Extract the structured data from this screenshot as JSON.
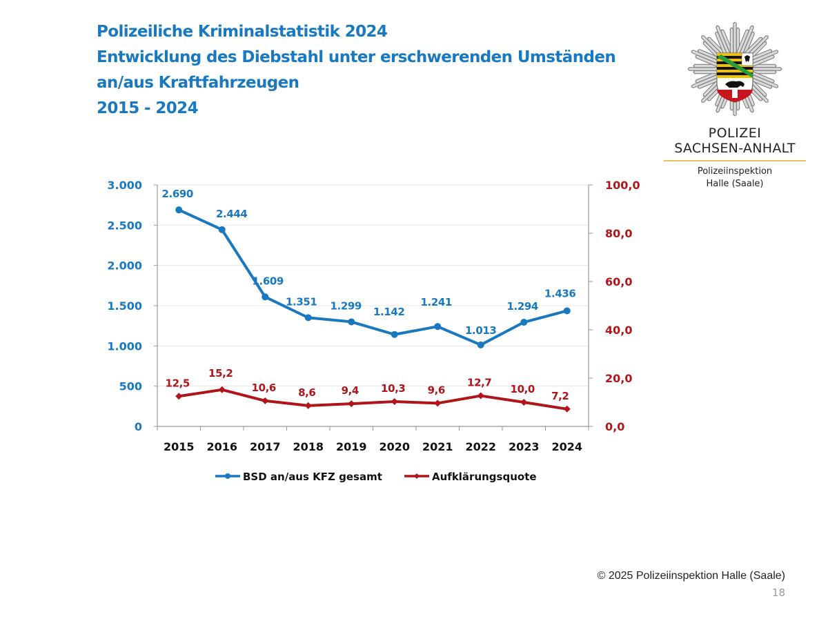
{
  "title": {
    "line1": "Polizeiliche Kriminalstatistik 2024",
    "line2": "Entwicklung des Diebstahl unter erschwerenden Umständen",
    "line3": "an/aus Kraftfahrzeugen",
    "line4": "2015 - 2024"
  },
  "logo": {
    "icon": "police-star-emblem-icon",
    "org_line1": "POLIZEI",
    "org_line2": "SACHSEN-ANHALT",
    "sub_line1": "Polizeiinspektion",
    "sub_line2": "Halle (Saale)"
  },
  "footer": {
    "copyright": "© 2025 Polizeiinspektion Halle (Saale)",
    "page_number": "18"
  },
  "colors": {
    "blue": "#1878c0",
    "red": "#b0151c",
    "title": "#1878c0"
  },
  "chart_data": {
    "type": "line",
    "title": "Entwicklung des Diebstahl unter erschwerenden Umständen an/aus Kraftfahrzeugen 2015 - 2024",
    "xlabel": "",
    "categories": [
      "2015",
      "2016",
      "2017",
      "2018",
      "2019",
      "2020",
      "2021",
      "2022",
      "2023",
      "2024"
    ],
    "y_left": {
      "ylim": [
        0,
        3000
      ],
      "ticks": [
        0,
        500,
        1000,
        1500,
        2000,
        2500,
        3000
      ],
      "tick_labels": [
        "0",
        "500",
        "1.000",
        "1.500",
        "2.000",
        "2.500",
        "3.000"
      ]
    },
    "y_right": {
      "ylim": [
        0,
        100
      ],
      "ticks": [
        0,
        20,
        40,
        60,
        80,
        100
      ],
      "tick_labels": [
        "0,0",
        "20,0",
        "40,0",
        "60,0",
        "80,0",
        "100,0"
      ]
    },
    "grid": true,
    "legend_position": "bottom",
    "series": [
      {
        "name": "BSD an/aus KFZ gesamt",
        "axis": "left",
        "color": "#1878c0",
        "marker": "circle",
        "values": [
          2690,
          2444,
          1609,
          1351,
          1299,
          1142,
          1241,
          1013,
          1294,
          1436
        ],
        "labels": [
          "2.690",
          "2.444",
          "1.609",
          "1.351",
          "1.299",
          "1.142",
          "1.241",
          "1.013",
          "1.294",
          "1.436"
        ]
      },
      {
        "name": "Aufklärungsquote",
        "axis": "right",
        "color": "#b0151c",
        "marker": "diamond",
        "values": [
          12.5,
          15.2,
          10.6,
          8.6,
          9.4,
          10.3,
          9.6,
          12.7,
          10.0,
          7.2
        ],
        "labels": [
          "12,5",
          "15,2",
          "10,6",
          "8,6",
          "9,4",
          "10,3",
          "9,6",
          "12,7",
          "10,0",
          "7,2"
        ]
      }
    ]
  }
}
